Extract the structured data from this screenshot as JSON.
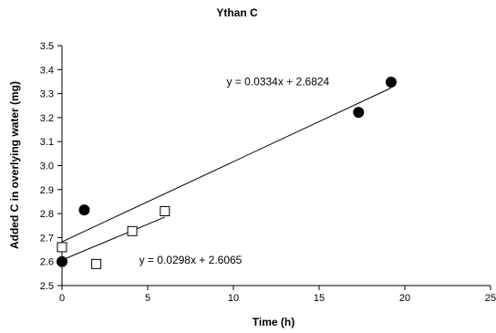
{
  "chart_data": {
    "type": "scatter",
    "title": "Ythan C",
    "xlabel": "Time (h)",
    "ylabel": "Added C in overlying water (mg)",
    "xlim": [
      0,
      25
    ],
    "ylim": [
      2.5,
      3.5
    ],
    "x_ticks": [
      "0",
      "5",
      "10",
      "15",
      "20",
      "25"
    ],
    "y_ticks": [
      "2.5",
      "2.6",
      "2.7",
      "2.8",
      "2.9",
      "3.0",
      "3.1",
      "3.2",
      "3.3",
      "3.4",
      "3.5"
    ],
    "grid": false,
    "series": [
      {
        "marker": "filled-circle",
        "color": "#000000",
        "points": [
          {
            "x": 0,
            "y": 2.6
          },
          {
            "x": 1.3,
            "y": 2.815
          },
          {
            "x": 17.3,
            "y": 3.222
          },
          {
            "x": 19.2,
            "y": 3.348
          }
        ],
        "trendline": {
          "slope": 0.0334,
          "intercept": 2.6824,
          "x_range": [
            0,
            19.2
          ]
        }
      },
      {
        "marker": "open-square",
        "color": "#000000",
        "points": [
          {
            "x": 0,
            "y": 2.66
          },
          {
            "x": 2,
            "y": 2.59
          },
          {
            "x": 4.1,
            "y": 2.727
          },
          {
            "x": 6,
            "y": 2.81
          }
        ],
        "trendline": {
          "slope": 0.0298,
          "intercept": 2.6065,
          "x_range": [
            0,
            6
          ]
        }
      }
    ],
    "annotations": [
      {
        "text": "y = 0.0334x + 2.6824",
        "x": 9.6,
        "y": 3.35
      },
      {
        "text": "y = 0.0298x + 2.6065",
        "x": 4.5,
        "y": 2.606
      }
    ]
  }
}
